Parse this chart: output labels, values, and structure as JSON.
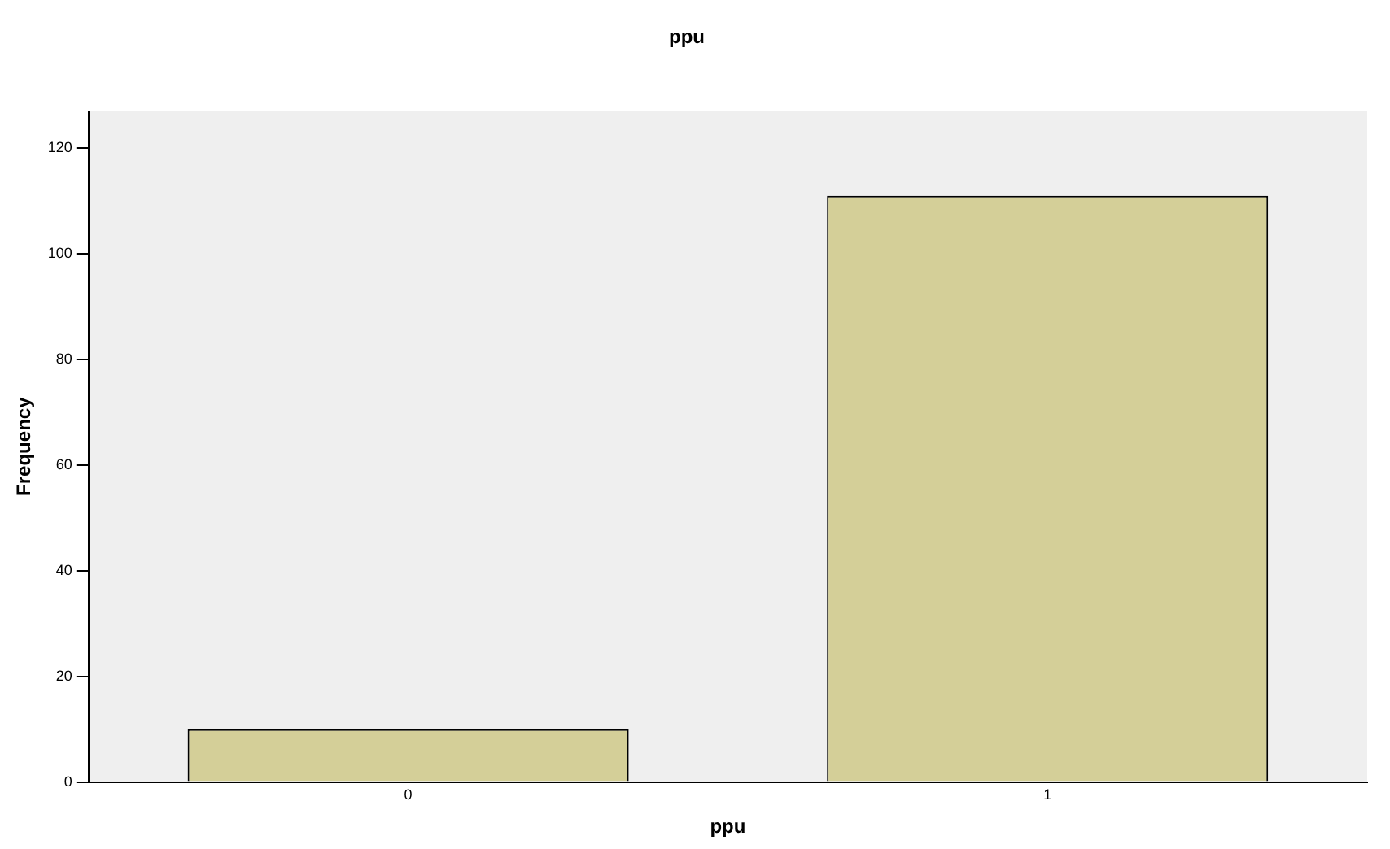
{
  "chart_data": {
    "type": "bar",
    "title": "ppu",
    "xlabel": "ppu",
    "ylabel": "Frequency",
    "categories": [
      "0",
      "1"
    ],
    "values": [
      10,
      111
    ],
    "color": "#d4cf98",
    "ylim": [
      0,
      127
    ],
    "yticks": [
      0,
      20,
      40,
      60,
      80,
      100,
      120
    ],
    "grid": false,
    "legend": false
  }
}
